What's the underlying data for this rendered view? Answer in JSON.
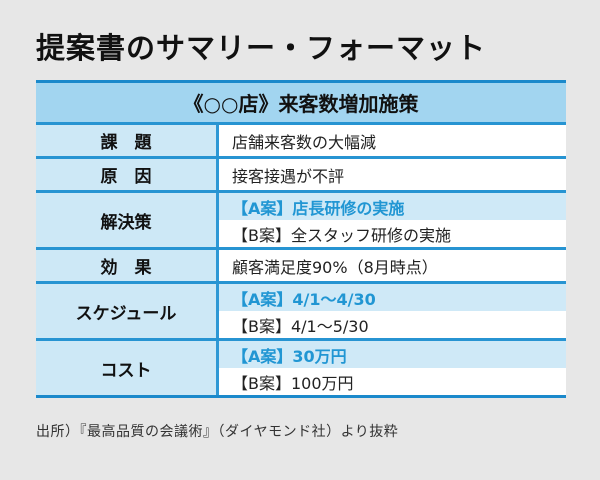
{
  "page": {
    "title": "提案書のサマリー・フォーマット",
    "source_note": "出所）『最高品質の会議術』（ダイヤモンド社）より抜粋"
  },
  "colors": {
    "page_bg": "#e7e7e7",
    "header_bg": "#a2d5f0",
    "label_bg": "#cde8f6",
    "plan_a_bg": "#cfe9f7",
    "plan_a_text": "#2196d3",
    "border_blue": "#2794d2",
    "outer_border_blue": "#1b89cb",
    "text_color": "#1a1a1a"
  },
  "table": {
    "header": "《○○店》来客数増加施策",
    "rows": [
      {
        "label": "課　題",
        "value": "店舗来客数の大幅減"
      },
      {
        "label": "原　因",
        "value": "接客接遇が不評"
      },
      {
        "label": "解決策",
        "plan_a": "【A案】店長研修の実施",
        "plan_b": "【B案】全スタッフ研修の実施"
      },
      {
        "label": "効　果",
        "value": "顧客満足度90%（8月時点）"
      },
      {
        "label": "スケジュール",
        "plan_a": "【A案】4/1～4/30",
        "plan_b": "【B案】4/1～5/30"
      },
      {
        "label": "コスト",
        "plan_a": "【A案】30万円",
        "plan_b": "【B案】100万円"
      }
    ]
  }
}
